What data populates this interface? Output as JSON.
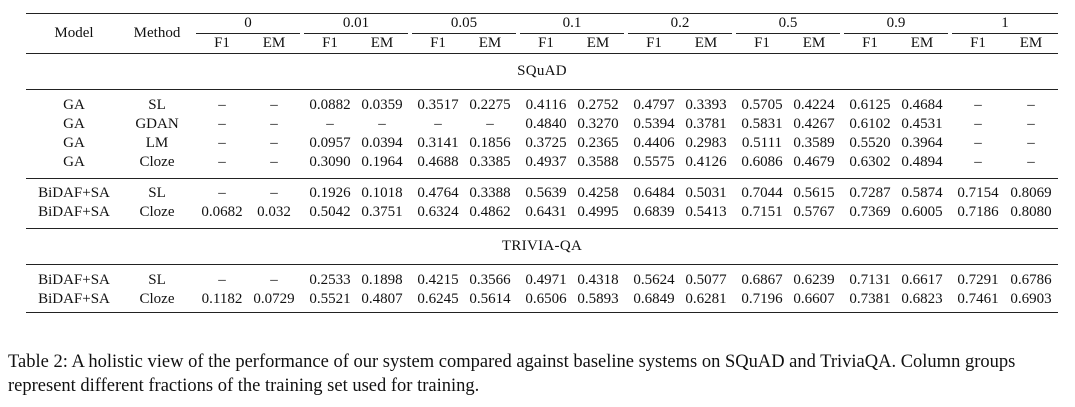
{
  "table": {
    "headers": {
      "model": "Model",
      "method": "Method",
      "groups": [
        "0",
        "0.01",
        "0.05",
        "0.1",
        "0.2",
        "0.5",
        "0.9",
        "1"
      ],
      "sub": [
        "F1",
        "EM"
      ]
    },
    "sections": [
      {
        "title": "SQuAD",
        "blocks": [
          [
            {
              "model": "GA",
              "method": "SL",
              "values": [
                "–",
                "–",
                "0.0882",
                "0.0359",
                "0.3517",
                "0.2275",
                "0.4116",
                "0.2752",
                "0.4797",
                "0.3393",
                "0.5705",
                "0.4224",
                "0.6125",
                "0.4684",
                "–",
                "–"
              ],
              "bold": false
            },
            {
              "model": "GA",
              "method": "GDAN",
              "values": [
                "–",
                "–",
                "–",
                "–",
                "–",
                "–",
                "0.4840",
                "0.3270",
                "0.5394",
                "0.3781",
                "0.5831",
                "0.4267",
                "0.6102",
                "0.4531",
                "–",
                "–"
              ],
              "bold": false
            },
            {
              "model": "GA",
              "method": "LM",
              "values": [
                "–",
                "–",
                "0.0957",
                "0.0394",
                "0.3141",
                "0.1856",
                "0.3725",
                "0.2365",
                "0.4406",
                "0.2983",
                "0.5111",
                "0.3589",
                "0.5520",
                "0.3964",
                "–",
                "–"
              ],
              "bold": false
            },
            {
              "model": "GA",
              "method": "Cloze",
              "values": [
                "–",
                "–",
                "0.3090",
                "0.1964",
                "0.4688",
                "0.3385",
                "0.4937",
                "0.3588",
                "0.5575",
                "0.4126",
                "0.6086",
                "0.4679",
                "0.6302",
                "0.4894",
                "–",
                "–"
              ],
              "bold": false
            }
          ],
          [
            {
              "model": "BiDAF+SA",
              "method": "SL",
              "values": [
                "–",
                "–",
                "0.1926",
                "0.1018",
                "0.4764",
                "0.3388",
                "0.5639",
                "0.4258",
                "0.6484",
                "0.5031",
                "0.7044",
                "0.5615",
                "0.7287",
                "0.5874",
                "0.7154",
                "0.8069"
              ],
              "bold": false
            },
            {
              "model": "BiDAF+SA",
              "method": "Cloze",
              "values": [
                "0.0682",
                "0.032",
                "0.5042",
                "0.3751",
                "0.6324",
                "0.4862",
                "0.6431",
                "0.4995",
                "0.6839",
                "0.5413",
                "0.7151",
                "0.5767",
                "0.7369",
                "0.6005",
                "0.7186",
                "0.8080"
              ],
              "bold": true
            }
          ]
        ]
      },
      {
        "title": "TRIVIA-QA",
        "blocks": [
          [
            {
              "model": "BiDAF+SA",
              "method": "SL",
              "values": [
                "–",
                "–",
                "0.2533",
                "0.1898",
                "0.4215",
                "0.3566",
                "0.4971",
                "0.4318",
                "0.5624",
                "0.5077",
                "0.6867",
                "0.6239",
                "0.7131",
                "0.6617",
                "0.7291",
                "0.6786"
              ],
              "bold": false
            },
            {
              "model": "BiDAF+SA",
              "method": "Cloze",
              "values": [
                "0.1182",
                "0.0729",
                "0.5521",
                "0.4807",
                "0.6245",
                "0.5614",
                "0.6506",
                "0.5893",
                "0.6849",
                "0.6281",
                "0.7196",
                "0.6607",
                "0.7381",
                "0.6823",
                "0.7461",
                "0.6903"
              ],
              "bold": true
            }
          ]
        ]
      }
    ]
  },
  "caption": "Table 2: A holistic view of the performance of our system compared against baseline systems on SQuAD and TriviaQA. Column groups represent different fractions of the training set used for training."
}
